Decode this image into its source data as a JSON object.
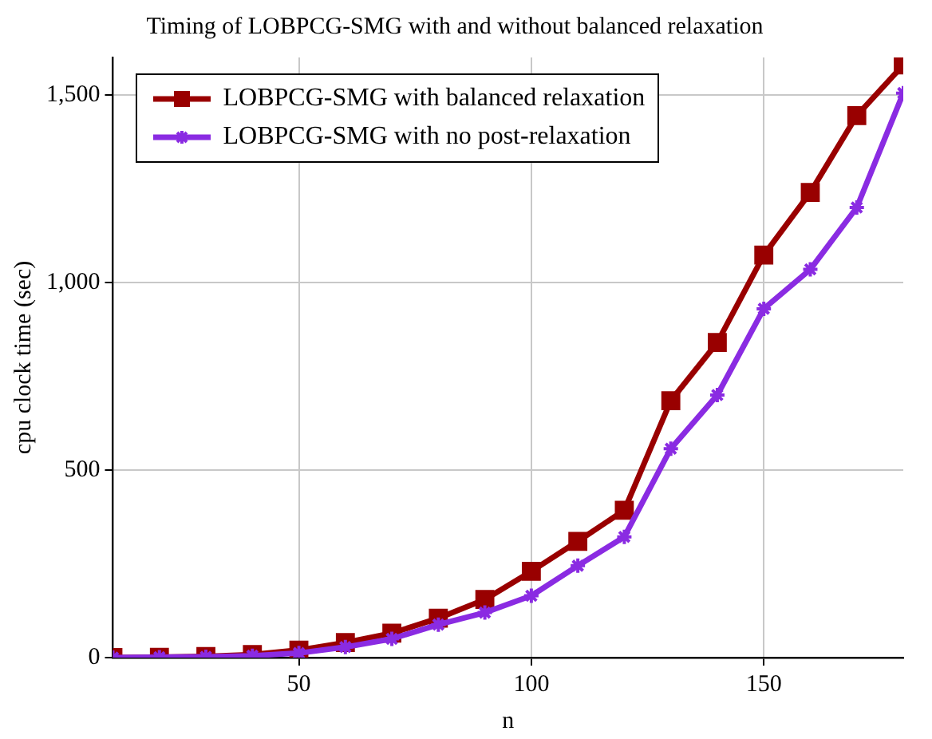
{
  "chart_data": {
    "type": "line",
    "title": "Timing of LOBPCG-SMG with and without balanced relaxation",
    "xlabel": "n",
    "ylabel": "cpu clock time (sec)",
    "x": [
      10,
      20,
      30,
      40,
      50,
      60,
      70,
      80,
      90,
      100,
      110,
      120,
      130,
      140,
      150,
      160,
      170,
      180
    ],
    "series": [
      {
        "name": "LOBPCG-SMG with balanced relaxation",
        "color": "#990000",
        "marker": "square",
        "values": [
          0,
          1,
          3,
          8,
          20,
          40,
          65,
          105,
          155,
          230,
          310,
          393,
          685,
          840,
          1073,
          1240,
          1445,
          1580
        ]
      },
      {
        "name": "LOBPCG-SMG with no post-relaxation",
        "color": "#8a2be2",
        "marker": "cross",
        "values": [
          0,
          1,
          2,
          5,
          12,
          28,
          50,
          88,
          120,
          165,
          245,
          322,
          557,
          700,
          930,
          1035,
          1200,
          1505
        ]
      }
    ],
    "xlim": [
      10,
      180
    ],
    "xticks": [
      50,
      100,
      150
    ],
    "ylim": [
      0,
      1600
    ],
    "yticks": [
      0,
      500,
      {
        "value": 1000,
        "label": "1,000"
      },
      {
        "value": 1500,
        "label": "1,500"
      }
    ],
    "grid": true,
    "legend": "top left",
    "line_style": "solid"
  }
}
